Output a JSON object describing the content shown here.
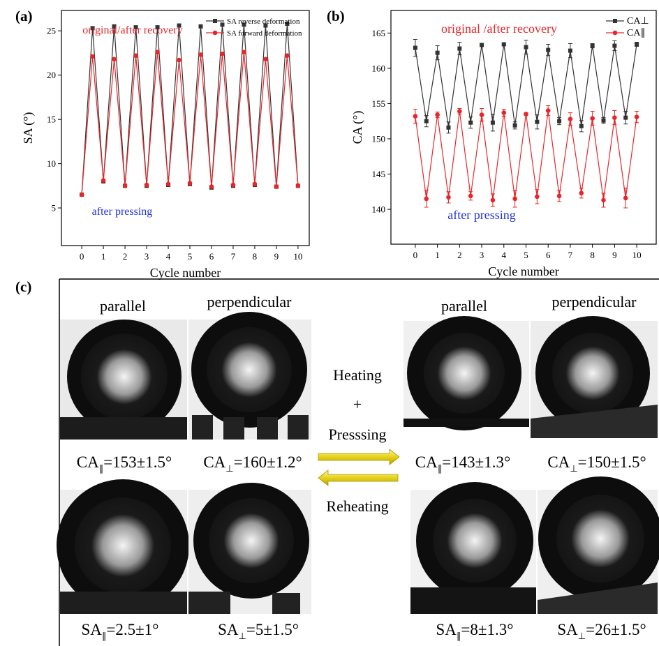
{
  "chart_data": [
    {
      "type": "line",
      "panel_label": "(a)",
      "xlabel": "Cycle number",
      "ylabel": "SA (°)",
      "x": [
        0,
        0.5,
        1,
        1.5,
        2,
        2.5,
        3,
        3.5,
        4,
        4.5,
        5,
        5.5,
        6,
        6.5,
        7,
        7.5,
        8,
        8.5,
        9,
        9.5,
        10
      ],
      "xlim": [
        -0.94,
        10.52
      ],
      "xticks": [
        0,
        1,
        2,
        3,
        4,
        5,
        6,
        7,
        8,
        9,
        10
      ],
      "ylim": [
        0.75,
        27.3
      ],
      "yticks": [
        5,
        10,
        15,
        20,
        25
      ],
      "legend": "upper right",
      "series": [
        {
          "name": "SA reverse deformation",
          "color": "#333333",
          "marker": "square",
          "values": [
            6.5,
            25.3,
            8.0,
            25.5,
            7.5,
            25.4,
            7.5,
            25.4,
            7.6,
            25.6,
            7.7,
            25.5,
            7.3,
            25.7,
            7.5,
            25.7,
            7.6,
            25.6,
            7.4,
            25.8,
            7.5
          ]
        },
        {
          "name": "SA forward deformation",
          "color": "#e8262a",
          "marker": "circle",
          "values": [
            6.5,
            22.1,
            8.1,
            21.8,
            7.5,
            22.2,
            7.6,
            22.6,
            7.7,
            21.7,
            7.8,
            22.3,
            7.4,
            22.4,
            7.6,
            22.6,
            7.7,
            21.8,
            7.4,
            22.2,
            7.5
          ]
        }
      ],
      "annotations": [
        {
          "text": "original/after recovery",
          "color": "#e8262a"
        },
        {
          "text": "after pressing",
          "color": "#2233dd"
        }
      ]
    },
    {
      "type": "line",
      "panel_label": "(b)",
      "xlabel": "Cycle number",
      "ylabel": "CA (°)",
      "x": [
        0,
        0.5,
        1,
        1.5,
        2,
        2.5,
        3,
        3.5,
        4,
        4.5,
        5,
        5.5,
        6,
        6.5,
        7,
        7.5,
        8,
        8.5,
        9,
        9.5,
        10
      ],
      "xlim": [
        -1.1,
        10.88
      ],
      "xticks": [
        0,
        1,
        2,
        3,
        4,
        5,
        6,
        7,
        8,
        9,
        10
      ],
      "ylim": [
        135.06,
        168.2
      ],
      "yticks": [
        140,
        145,
        150,
        155,
        160,
        165
      ],
      "legend": "upper right",
      "series": [
        {
          "name": "CA⊥",
          "color": "#333333",
          "marker": "square",
          "values": [
            162.9,
            152.5,
            162.2,
            151.6,
            162.8,
            152.3,
            163.3,
            152.3,
            163.4,
            151.9,
            163.0,
            152.4,
            162.6,
            152.5,
            162.5,
            151.8,
            163.2,
            152.6,
            163.2,
            153.0,
            163.4
          ],
          "errors": [
            1.2,
            0.8,
            1.0,
            0.8,
            0.9,
            0.8,
            0.2,
            1.2,
            0.2,
            0.5,
            1.0,
            1.0,
            0.8,
            0.5,
            1.0,
            0.8,
            0.3,
            0.4,
            0.7,
            0.9,
            0.3
          ]
        },
        {
          "name": "CA∥",
          "color": "#e8262a",
          "marker": "circle",
          "values": [
            153.2,
            141.5,
            153.4,
            141.7,
            153.9,
            141.9,
            153.4,
            141.3,
            153.7,
            141.5,
            153.5,
            141.8,
            154.0,
            141.9,
            152.8,
            142.3,
            152.9,
            141.3,
            153.0,
            141.6,
            153.1
          ],
          "errors": [
            1.0,
            1.2,
            0.4,
            0.8,
            0.4,
            0.6,
            0.9,
            0.9,
            0.5,
            1.2,
            0.2,
            1.0,
            0.7,
            0.8,
            0.9,
            0.7,
            1.0,
            1.0,
            1.0,
            1.4,
            0.8
          ]
        }
      ],
      "annotations": [
        {
          "text": "original /after recovery",
          "color": "#e8262a"
        },
        {
          "text": "after pressing",
          "color": "#2233dd"
        }
      ]
    }
  ],
  "panel_c": {
    "label": "(c)",
    "headers": [
      "parallel",
      "perpendicular",
      "parallel",
      "perpendicular"
    ],
    "process": [
      "Heating",
      "+",
      "Presssing",
      "Reheating"
    ],
    "ca_captions": [
      {
        "base": "CA",
        "sub": "∥",
        "rest": "=153±1.5°"
      },
      {
        "base": "CA",
        "sub": "⊥",
        "rest": "=160±1.2°"
      },
      {
        "base": "CA",
        "sub": "∥",
        "rest": "=143±1.3°"
      },
      {
        "base": "CA",
        "sub": "⊥",
        "rest": "=150±1.5°"
      }
    ],
    "sa_captions": [
      {
        "base": "SA",
        "sub": "∥",
        "rest": "=2.5±1°"
      },
      {
        "base": "SA",
        "sub": "⊥",
        "rest": "=5±1.5°"
      },
      {
        "base": "SA",
        "sub": "∥",
        "rest": "=8±1.3°"
      },
      {
        "base": "SA",
        "sub": "⊥",
        "rest": "=26±1.5°"
      }
    ]
  }
}
